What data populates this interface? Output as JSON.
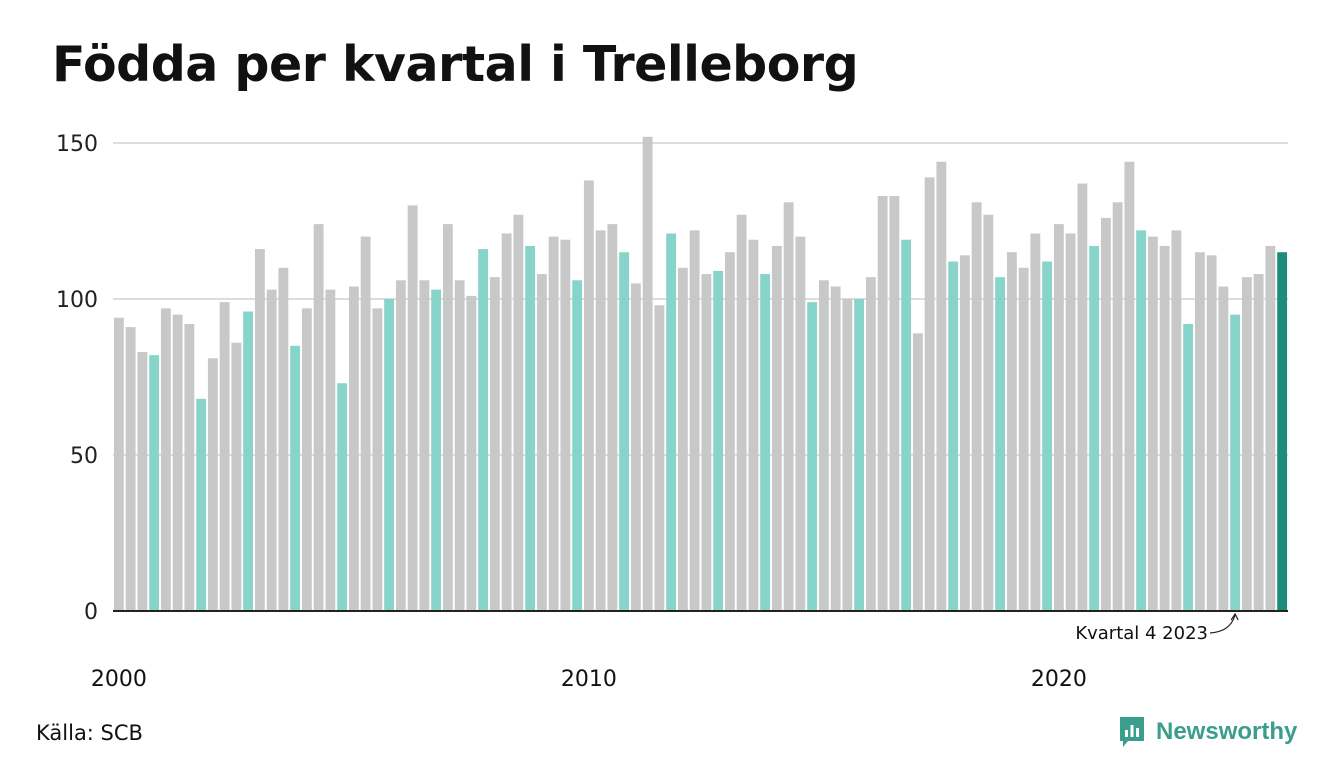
{
  "title": "Födda per kvartal i Trelleborg",
  "source": "Källa: SCB",
  "brand": "Newsworthy",
  "colors": {
    "bar_other": "#c8c8c8",
    "bar_q4": "#87d4ca",
    "bar_latest": "#1e8c7c",
    "grid": "#dddddd",
    "axis": "#222222",
    "brand": "#3a9e8c"
  },
  "chart_data": {
    "type": "bar",
    "title": "Födda per kvartal i Trelleborg",
    "xlabel": "",
    "ylabel": "",
    "ylim": [
      0,
      150
    ],
    "yticks": [
      0,
      50,
      100,
      150
    ],
    "xtick_labels": [
      {
        "label": "2000",
        "index": 0
      },
      {
        "label": "2010",
        "index": 40
      },
      {
        "label": "2020",
        "index": 80
      }
    ],
    "grid": true,
    "annotation": {
      "text": "Kvartal 4 2023",
      "index": 95
    },
    "highlight": "Q4 bars in light teal; latest bar in dark teal",
    "categories": [
      "2000 Q1",
      "2000 Q2",
      "2000 Q3",
      "2000 Q4",
      "2001 Q1",
      "2001 Q2",
      "2001 Q3",
      "2001 Q4",
      "2002 Q1",
      "2002 Q2",
      "2002 Q3",
      "2002 Q4",
      "2003 Q1",
      "2003 Q2",
      "2003 Q3",
      "2003 Q4",
      "2004 Q1",
      "2004 Q2",
      "2004 Q3",
      "2004 Q4",
      "2005 Q1",
      "2005 Q2",
      "2005 Q3",
      "2005 Q4",
      "2006 Q1",
      "2006 Q2",
      "2006 Q3",
      "2006 Q4",
      "2007 Q1",
      "2007 Q2",
      "2007 Q3",
      "2007 Q4",
      "2008 Q1",
      "2008 Q2",
      "2008 Q3",
      "2008 Q4",
      "2009 Q1",
      "2009 Q2",
      "2009 Q3",
      "2009 Q4",
      "2010 Q1",
      "2010 Q2",
      "2010 Q3",
      "2010 Q4",
      "2011 Q1",
      "2011 Q2",
      "2011 Q3",
      "2011 Q4",
      "2012 Q1",
      "2012 Q2",
      "2012 Q3",
      "2012 Q4",
      "2013 Q1",
      "2013 Q2",
      "2013 Q3",
      "2013 Q4",
      "2014 Q1",
      "2014 Q2",
      "2014 Q3",
      "2014 Q4",
      "2015 Q1",
      "2015 Q2",
      "2015 Q3",
      "2015 Q4",
      "2016 Q1",
      "2016 Q2",
      "2016 Q3",
      "2016 Q4",
      "2017 Q1",
      "2017 Q2",
      "2017 Q3",
      "2017 Q4",
      "2018 Q1",
      "2018 Q2",
      "2018 Q3",
      "2018 Q4",
      "2019 Q1",
      "2019 Q2",
      "2019 Q3",
      "2019 Q4",
      "2020 Q1",
      "2020 Q2",
      "2020 Q3",
      "2020 Q4",
      "2021 Q1",
      "2021 Q2",
      "2021 Q3",
      "2021 Q4",
      "2022 Q1",
      "2022 Q2",
      "2022 Q3",
      "2022 Q4",
      "2023 Q1",
      "2023 Q2",
      "2023 Q3",
      "2023 Q4",
      "2024 Q1",
      "2024 Q2",
      "2024 Q3",
      "2024 Q4"
    ],
    "values": [
      94,
      91,
      83,
      82,
      97,
      95,
      92,
      68,
      81,
      99,
      86,
      96,
      116,
      103,
      110,
      85,
      97,
      124,
      103,
      73,
      104,
      120,
      97,
      100,
      106,
      130,
      106,
      103,
      124,
      106,
      101,
      116,
      107,
      121,
      127,
      117,
      108,
      120,
      119,
      106,
      138,
      122,
      124,
      115,
      105,
      152,
      98,
      121,
      110,
      122,
      108,
      109,
      115,
      127,
      119,
      108,
      117,
      131,
      120,
      99,
      106,
      104,
      100,
      100,
      107,
      133,
      133,
      119,
      89,
      139,
      144,
      112,
      114,
      131,
      127,
      107,
      115,
      110,
      121,
      112,
      124,
      121,
      137,
      117,
      126,
      131,
      144,
      122,
      120,
      117,
      122,
      92,
      115,
      114,
      104,
      95,
      107,
      108,
      117,
      115
    ]
  }
}
